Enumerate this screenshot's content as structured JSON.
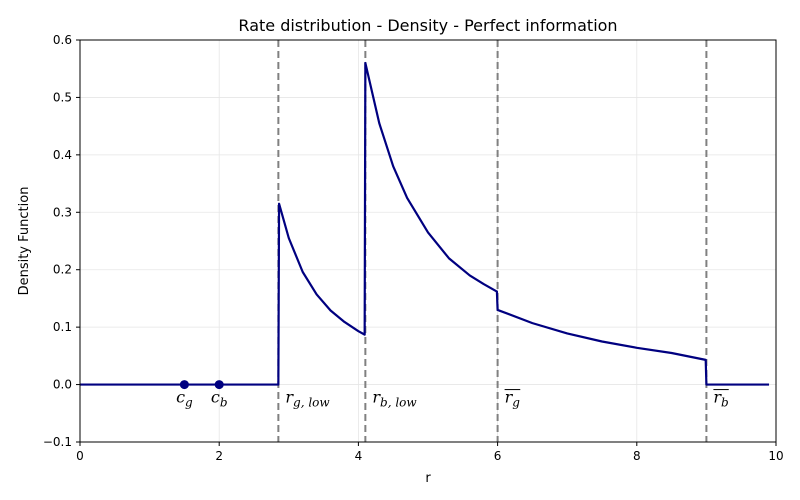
{
  "chart_data": {
    "type": "line",
    "title": "Rate distribution - Density - Perfect information",
    "xlabel": "r",
    "ylabel": "Density Function",
    "xlim": [
      0,
      10
    ],
    "ylim": [
      -0.1,
      0.6
    ],
    "x_ticks": [
      0,
      2,
      4,
      6,
      8,
      10
    ],
    "y_ticks": [
      -0.1,
      0.0,
      0.1,
      0.2,
      0.3,
      0.4,
      0.5,
      0.6
    ],
    "x_tick_labels": [
      "0",
      "2",
      "4",
      "6",
      "8",
      "10"
    ],
    "y_tick_labels": [
      "−0.1",
      "0.0",
      "0.1",
      "0.2",
      "0.3",
      "0.4",
      "0.5",
      "0.6"
    ],
    "grid": true,
    "line_color": "#000080",
    "series": [
      {
        "x": [
          0,
          2.85,
          2.86,
          3.0,
          3.2,
          3.4,
          3.6,
          3.8,
          4.0,
          4.09,
          4.1,
          4.3,
          4.5,
          4.7,
          5.0,
          5.3,
          5.6,
          5.8,
          5.99,
          6.0,
          6.5,
          7.0,
          7.5,
          8.0,
          8.5,
          8.99,
          9.0,
          9.9
        ],
        "y": [
          0,
          0,
          0.315,
          0.255,
          0.196,
          0.157,
          0.129,
          0.109,
          0.093,
          0.087,
          0.56,
          0.455,
          0.38,
          0.325,
          0.265,
          0.22,
          0.19,
          0.175,
          0.162,
          0.13,
          0.107,
          0.089,
          0.075,
          0.064,
          0.055,
          0.043,
          0.0,
          0.0
        ]
      }
    ],
    "points": [
      {
        "x": 1.5,
        "y": 0,
        "label_main": "c",
        "label_sub": "g"
      },
      {
        "x": 2.0,
        "y": 0,
        "label_main": "c",
        "label_sub": "b"
      }
    ],
    "vlines": [
      {
        "x": 2.85,
        "label_main": "r",
        "label_sub": "g, low",
        "overline": false
      },
      {
        "x": 4.1,
        "label_main": "r",
        "label_sub": "b, low",
        "overline": false
      },
      {
        "x": 6.0,
        "label_main": "r",
        "label_sub": "g",
        "overline": true
      },
      {
        "x": 9.0,
        "label_main": "r",
        "label_sub": "b",
        "overline": true
      }
    ],
    "vline_color": "#808080",
    "point_color": "#000080"
  }
}
